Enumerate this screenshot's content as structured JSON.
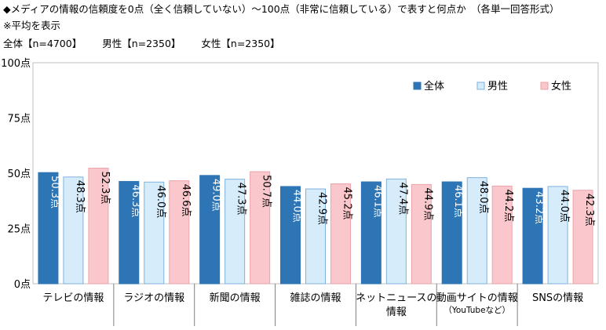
{
  "header": {
    "title": "◆メディアの情報の信頼度を0点（全く信頼していない）～100点（非常に信頼している）で表すと何点か　（各単一回答形式）",
    "avg_note": "※平均を表示",
    "samples": [
      {
        "label": "全体【n=4700】"
      },
      {
        "label": "男性【n=2350】"
      },
      {
        "label": "女性【n=2350】"
      }
    ]
  },
  "chart_data": {
    "type": "bar",
    "title": "メディアの情報の信頼度を0点（全く信頼していない）～100点（非常に信頼している）で表すと何点か",
    "categories": [
      {
        "label": "テレビの情報",
        "label2": "",
        "sub": ""
      },
      {
        "label": "ラジオの情報",
        "label2": "",
        "sub": ""
      },
      {
        "label": "新聞の情報",
        "label2": "",
        "sub": ""
      },
      {
        "label": "雑誌の情報",
        "label2": "",
        "sub": ""
      },
      {
        "label": "ネットニュースの",
        "label2": "情報",
        "sub": ""
      },
      {
        "label": "動画サイトの情報",
        "label2": "",
        "sub": "（YouTubeなど）"
      },
      {
        "label": "SNSの情報",
        "label2": "",
        "sub": ""
      }
    ],
    "series": [
      {
        "name": "全体",
        "color": "#2e75b6",
        "stroke": "#2e75b6",
        "label_color": "#ffffff",
        "values": [
          50.3,
          46.3,
          49.0,
          44.0,
          46.1,
          46.1,
          43.2
        ]
      },
      {
        "name": "男性",
        "color": "#d6ecfa",
        "stroke": "#7fb2de",
        "label_color": "#000000",
        "values": [
          48.3,
          46.0,
          47.3,
          42.9,
          47.4,
          48.0,
          44.0
        ]
      },
      {
        "name": "女性",
        "color": "#f9c7cc",
        "stroke": "#eda3aa",
        "label_color": "#000000",
        "values": [
          52.3,
          46.6,
          50.7,
          45.2,
          44.9,
          44.2,
          42.3
        ]
      }
    ],
    "unit": "点",
    "yticks": [
      0,
      25,
      50,
      75,
      100
    ],
    "ytick_labels": [
      "0点",
      "25点",
      "50点",
      "75点",
      "100点"
    ],
    "ylim": [
      0,
      100
    ],
    "legend_position": "top-right",
    "grid": false
  }
}
